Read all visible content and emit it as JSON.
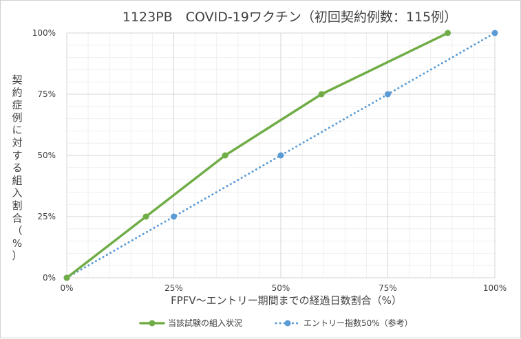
{
  "chart_data": {
    "type": "line",
    "title": "1123PB　COVID-19ワクチン（初回契約例数：115例）",
    "xlabel": "FPFV～エントリー期間までの経過日数割合（%）",
    "ylabel": "契約症例に対する組入割合（%）",
    "xlim": [
      0,
      100
    ],
    "ylim": [
      0,
      100
    ],
    "x_ticks": [
      "0%",
      "25%",
      "50%",
      "75%",
      "100%"
    ],
    "y_ticks": [
      "0%",
      "25%",
      "50%",
      "75%",
      "100%"
    ],
    "grid": true,
    "legend_position": "bottom",
    "series": [
      {
        "name": "当該試験の組入状況",
        "color": "#70ad47",
        "style": "solid",
        "x": [
          0,
          18.5,
          37,
          59.5,
          89
        ],
        "y": [
          0,
          25,
          50,
          75,
          100
        ]
      },
      {
        "name": "エントリー指数50%（参考）",
        "color": "#5b9bd5",
        "style": "dotted",
        "x": [
          0,
          25,
          50,
          75,
          100
        ],
        "y": [
          0,
          25,
          50,
          75,
          100
        ]
      }
    ]
  }
}
